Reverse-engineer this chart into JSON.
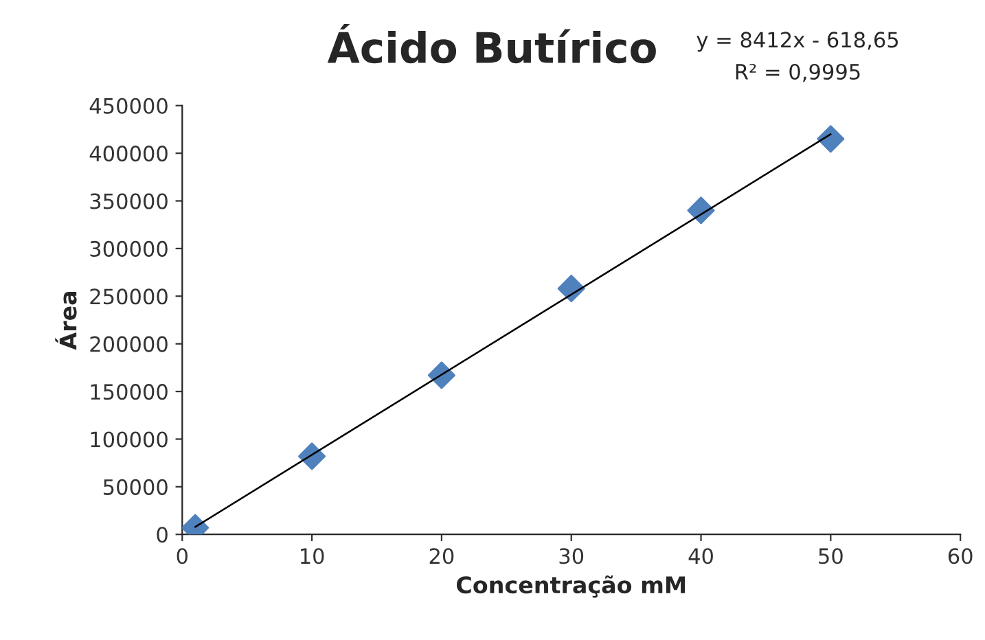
{
  "chart_data": {
    "type": "scatter",
    "title": "Ácido Butírico",
    "xlabel": "Concentração mM",
    "ylabel": "Área",
    "annotations": [
      "y = 8412x - 618,65",
      "R² = 0,9995"
    ],
    "series": [
      {
        "color": "#4f81bd",
        "marker": "diamond",
        "x": [
          1,
          10,
          20,
          30,
          40,
          50
        ],
        "values": [
          7000,
          82000,
          167000,
          258000,
          340000,
          415000
        ]
      },
      {
        "type": "line",
        "color": "#000000",
        "marker": "none",
        "line_style": "solid",
        "x": [
          1,
          50
        ],
        "values": [
          7800,
          420000
        ]
      }
    ],
    "xlim": [
      0,
      60
    ],
    "xticks": [
      0,
      10,
      20,
      30,
      40,
      50,
      60
    ],
    "ylim": [
      0,
      450000
    ],
    "yticks": [
      0,
      50000,
      100000,
      150000,
      200000,
      250000,
      300000,
      350000,
      400000,
      450000
    ],
    "grid": false
  }
}
